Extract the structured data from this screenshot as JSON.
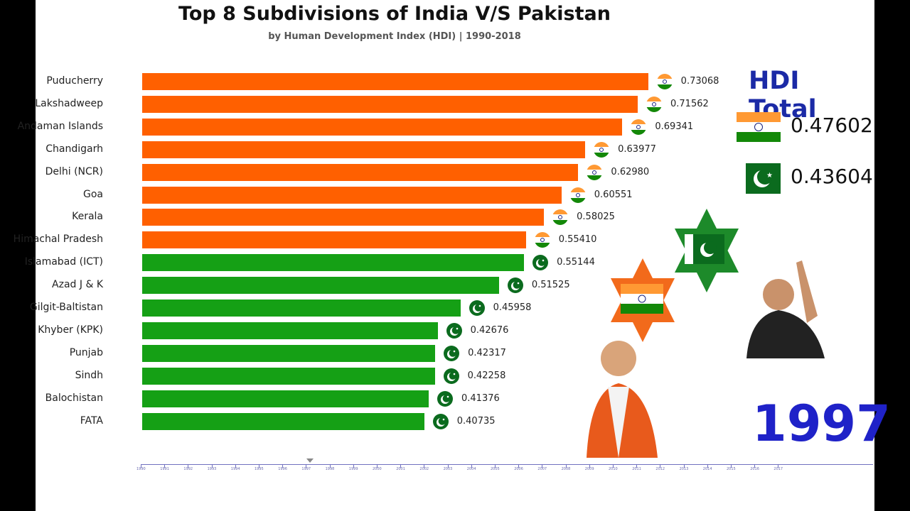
{
  "chart_data": {
    "type": "bar",
    "orientation": "horizontal",
    "title": "Top 8 Subdivisions of India V/S Pakistan",
    "subtitle": "by Human Development Index (HDI) | 1990-2018",
    "categories": [
      "Puducherry",
      "Lakshadweep",
      "Andaman Islands",
      "Chandigarh",
      "Delhi (NCR)",
      "Goa",
      "Kerala",
      "Himachal Pradesh",
      "Islamabad (ICT)",
      "Azad J & K",
      "Gilgit-Baltistan",
      "Khyber (KPK)",
      "Punjab",
      "Sindh",
      "Balochistan",
      "FATA"
    ],
    "values": [
      0.73068,
      0.71562,
      0.69341,
      0.63977,
      0.6298,
      0.60551,
      0.58025,
      0.5541,
      0.55144,
      0.51525,
      0.45958,
      0.42676,
      0.42317,
      0.42258,
      0.41376,
      0.40735
    ],
    "value_labels": [
      "0.73068",
      "0.71562",
      "0.69341",
      "0.63977",
      "0.62980",
      "0.60551",
      "0.58025",
      "0.55410",
      "0.55144",
      "0.51525",
      "0.45958",
      "0.42676",
      "0.42317",
      "0.42258",
      "0.41376",
      "0.40735"
    ],
    "country": [
      "India",
      "India",
      "India",
      "India",
      "India",
      "India",
      "India",
      "India",
      "Pakistan",
      "Pakistan",
      "Pakistan",
      "Pakistan",
      "Pakistan",
      "Pakistan",
      "Pakistan",
      "Pakistan"
    ],
    "colors": {
      "India": "#ff6000",
      "Pakistan": "#15a015"
    },
    "xlim": [
      0,
      0.75
    ],
    "timeline": {
      "years": [
        "1990",
        "1991",
        "1992",
        "1993",
        "1994",
        "1995",
        "1996",
        "1997",
        "1998",
        "1999",
        "2000",
        "2001",
        "2002",
        "2003",
        "2004",
        "2005",
        "2006",
        "2007",
        "2008",
        "2009",
        "2010",
        "2011",
        "2012",
        "2013",
        "2014",
        "2015",
        "2016",
        "2017"
      ],
      "current": "1997"
    }
  },
  "totals": {
    "title": "HDI Total",
    "india": "0.47602",
    "pakistan": "0.43604"
  },
  "year": "1997"
}
